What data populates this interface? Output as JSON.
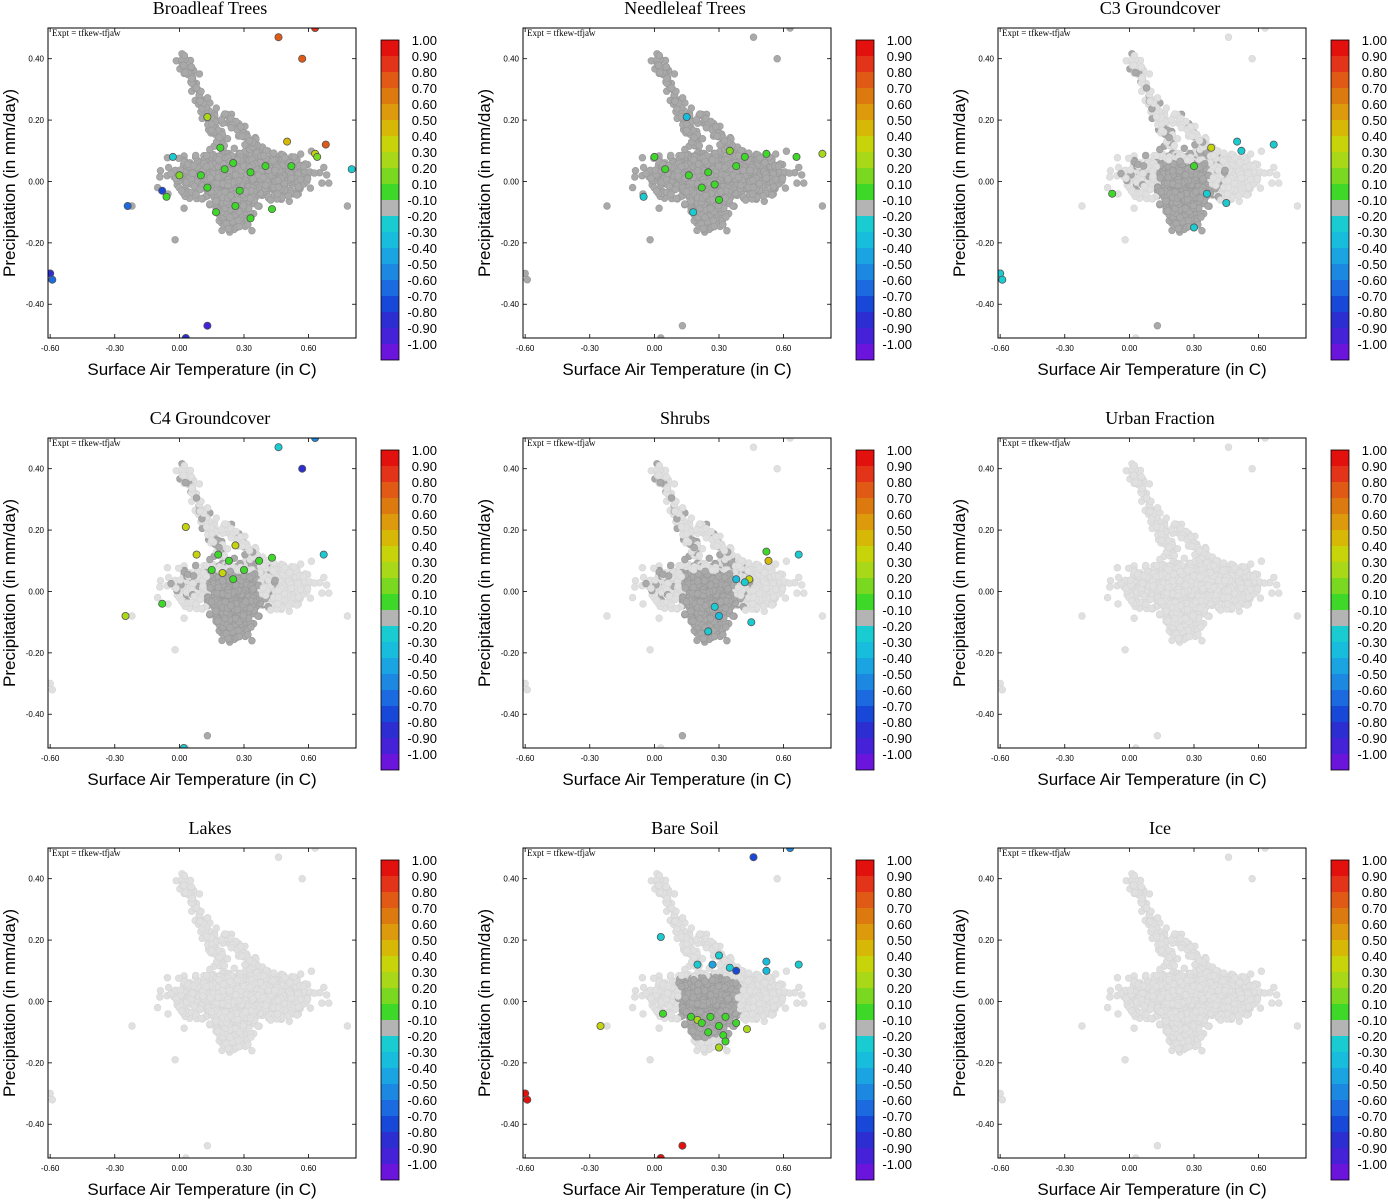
{
  "figure": {
    "expt_label": "Expt = tfkew-tfjaw",
    "xlabel": "Surface Air Temperature (in C)",
    "ylabel": "Precipitation (in mm/day)",
    "xticks": [
      "-0.60",
      "-0.30",
      "0.00",
      "0.30",
      "0.60"
    ],
    "yticks": [
      "0.40",
      "0.20",
      "0.00",
      "-0.20",
      "-0.40"
    ],
    "colorbar": {
      "labels": [
        "1.00",
        "0.90",
        "0.80",
        "0.70",
        "0.60",
        "0.50",
        "0.40",
        "0.30",
        "0.20",
        "0.10",
        "-0.10",
        "-0.20",
        "-0.30",
        "-0.40",
        "-0.50",
        "-0.60",
        "-0.70",
        "-0.80",
        "-0.90",
        "-1.00"
      ],
      "colors": [
        "#e3110e",
        "#e3341a",
        "#e05a16",
        "#dc7a10",
        "#dc9a0c",
        "#d7b806",
        "#c8d40a",
        "#a8d818",
        "#7ad820",
        "#3ed828",
        "#b4b4b4",
        "#18ccd2",
        "#18bcdc",
        "#1aa4e2",
        "#1c88e2",
        "#1c6ae0",
        "#1848d8",
        "#2d2ed2",
        "#4522d8",
        "#6a14dc"
      ]
    }
  },
  "chart_data": [
    {
      "type": "scatter",
      "title": "Broadleaf Trees",
      "xlim": [
        -0.61,
        0.82
      ],
      "ylim": [
        -0.51,
        0.5
      ],
      "background_style": "dark",
      "points": [
        {
          "x": 0.46,
          "y": 0.47,
          "color": "#e05a16"
        },
        {
          "x": 0.63,
          "y": 0.5,
          "color": "#e3341a"
        },
        {
          "x": 0.57,
          "y": 0.4,
          "color": "#e05a16"
        },
        {
          "x": 0.68,
          "y": 0.12,
          "color": "#e05a16"
        },
        {
          "x": 0.13,
          "y": 0.21,
          "color": "#a8d818"
        },
        {
          "x": 0.5,
          "y": 0.13,
          "color": "#d7b806"
        },
        {
          "x": 0.63,
          "y": 0.09,
          "color": "#c8d40a"
        },
        {
          "x": 0.64,
          "y": 0.08,
          "color": "#7ad820"
        },
        {
          "x": 0.19,
          "y": 0.11,
          "color": "#3ed828"
        },
        {
          "x": 0.0,
          "y": 0.02,
          "color": "#7ad820"
        },
        {
          "x": 0.1,
          "y": 0.02,
          "color": "#3ed828"
        },
        {
          "x": 0.21,
          "y": 0.04,
          "color": "#3ed828"
        },
        {
          "x": 0.25,
          "y": 0.06,
          "color": "#3ed828"
        },
        {
          "x": 0.33,
          "y": 0.03,
          "color": "#3ed828"
        },
        {
          "x": 0.4,
          "y": 0.05,
          "color": "#3ed828"
        },
        {
          "x": 0.52,
          "y": 0.05,
          "color": "#3ed828"
        },
        {
          "x": 0.13,
          "y": -0.02,
          "color": "#3ed828"
        },
        {
          "x": 0.28,
          "y": -0.03,
          "color": "#3ed828"
        },
        {
          "x": 0.17,
          "y": -0.1,
          "color": "#3ed828"
        },
        {
          "x": 0.26,
          "y": -0.08,
          "color": "#3ed828"
        },
        {
          "x": 0.33,
          "y": -0.12,
          "color": "#3ed828"
        },
        {
          "x": 0.43,
          "y": -0.09,
          "color": "#3ed828"
        },
        {
          "x": -0.06,
          "y": -0.05,
          "color": "#3ed828"
        },
        {
          "x": 0.8,
          "y": 0.04,
          "color": "#18ccd2"
        },
        {
          "x": -0.03,
          "y": 0.08,
          "color": "#18ccd2"
        },
        {
          "x": -0.08,
          "y": -0.03,
          "color": "#1848d8"
        },
        {
          "x": -0.24,
          "y": -0.08,
          "color": "#1c6ae0"
        },
        {
          "x": -0.6,
          "y": -0.3,
          "color": "#2d2ed2"
        },
        {
          "x": -0.59,
          "y": -0.32,
          "color": "#1c6ae0"
        },
        {
          "x": 0.13,
          "y": -0.47,
          "color": "#4522d8"
        },
        {
          "x": 0.03,
          "y": -0.51,
          "color": "#2d2ed2"
        }
      ]
    },
    {
      "type": "scatter",
      "title": "Needleleaf Trees",
      "xlim": [
        -0.61,
        0.82
      ],
      "ylim": [
        -0.51,
        0.5
      ],
      "background_style": "dark",
      "points": [
        {
          "x": 0.0,
          "y": 0.08,
          "color": "#3ed828"
        },
        {
          "x": 0.05,
          "y": 0.04,
          "color": "#3ed828"
        },
        {
          "x": 0.16,
          "y": 0.02,
          "color": "#3ed828"
        },
        {
          "x": 0.25,
          "y": 0.03,
          "color": "#3ed828"
        },
        {
          "x": 0.28,
          "y": -0.01,
          "color": "#3ed828"
        },
        {
          "x": 0.22,
          "y": -0.02,
          "color": "#3ed828"
        },
        {
          "x": 0.3,
          "y": -0.06,
          "color": "#3ed828"
        },
        {
          "x": 0.38,
          "y": 0.05,
          "color": "#3ed828"
        },
        {
          "x": 0.42,
          "y": 0.08,
          "color": "#3ed828"
        },
        {
          "x": 0.52,
          "y": 0.09,
          "color": "#3ed828"
        },
        {
          "x": 0.66,
          "y": 0.08,
          "color": "#3ed828"
        },
        {
          "x": 0.78,
          "y": 0.09,
          "color": "#a8d818"
        },
        {
          "x": 0.84,
          "y": 0.04,
          "color": "#3ed828"
        },
        {
          "x": 0.35,
          "y": 0.1,
          "color": "#7ad820"
        },
        {
          "x": 0.15,
          "y": 0.21,
          "color": "#18bcdc"
        },
        {
          "x": 0.18,
          "y": -0.1,
          "color": "#18ccd2"
        },
        {
          "x": -0.05,
          "y": -0.05,
          "color": "#18ccd2"
        }
      ]
    },
    {
      "type": "scatter",
      "title": "C3 Groundcover",
      "xlim": [
        -0.61,
        0.82
      ],
      "ylim": [
        -0.51,
        0.5
      ],
      "background_style": "light",
      "points": [
        {
          "x": 0.38,
          "y": 0.11,
          "color": "#c8d40a"
        },
        {
          "x": 0.3,
          "y": 0.05,
          "color": "#3ed828"
        },
        {
          "x": -0.08,
          "y": -0.04,
          "color": "#3ed828"
        },
        {
          "x": 0.5,
          "y": 0.13,
          "color": "#18ccd2"
        },
        {
          "x": 0.52,
          "y": 0.1,
          "color": "#18ccd2"
        },
        {
          "x": 0.67,
          "y": 0.12,
          "color": "#18ccd2"
        },
        {
          "x": 0.36,
          "y": -0.04,
          "color": "#18ccd2"
        },
        {
          "x": 0.45,
          "y": -0.07,
          "color": "#18ccd2"
        },
        {
          "x": 0.3,
          "y": -0.15,
          "color": "#18ccd2"
        },
        {
          "x": -0.6,
          "y": -0.3,
          "color": "#18ccd2"
        },
        {
          "x": -0.59,
          "y": -0.32,
          "color": "#18ccd2"
        }
      ]
    },
    {
      "type": "scatter",
      "title": "C4 Groundcover",
      "xlim": [
        -0.61,
        0.82
      ],
      "ylim": [
        -0.51,
        0.5
      ],
      "background_style": "light",
      "points": [
        {
          "x": 0.03,
          "y": 0.21,
          "color": "#c8d40a"
        },
        {
          "x": 0.08,
          "y": 0.12,
          "color": "#c8d40a"
        },
        {
          "x": 0.18,
          "y": 0.12,
          "color": "#3ed828"
        },
        {
          "x": 0.26,
          "y": 0.15,
          "color": "#c8d40a"
        },
        {
          "x": 0.2,
          "y": 0.06,
          "color": "#c8d40a"
        },
        {
          "x": 0.25,
          "y": 0.04,
          "color": "#3ed828"
        },
        {
          "x": 0.3,
          "y": 0.07,
          "color": "#3ed828"
        },
        {
          "x": 0.37,
          "y": 0.1,
          "color": "#3ed828"
        },
        {
          "x": 0.43,
          "y": 0.11,
          "color": "#3ed828"
        },
        {
          "x": 0.15,
          "y": 0.07,
          "color": "#3ed828"
        },
        {
          "x": 0.23,
          "y": 0.1,
          "color": "#3ed828"
        },
        {
          "x": -0.08,
          "y": -0.04,
          "color": "#3ed828"
        },
        {
          "x": -0.25,
          "y": -0.08,
          "color": "#a8d818"
        },
        {
          "x": 0.46,
          "y": 0.47,
          "color": "#18ccd2"
        },
        {
          "x": 0.67,
          "y": 0.12,
          "color": "#18ccd2"
        },
        {
          "x": 0.63,
          "y": 0.5,
          "color": "#1c88e2"
        },
        {
          "x": 0.57,
          "y": 0.4,
          "color": "#2d2ed2"
        },
        {
          "x": 0.02,
          "y": -0.51,
          "color": "#18ccd2"
        }
      ]
    },
    {
      "type": "scatter",
      "title": "Shrubs",
      "xlim": [
        -0.61,
        0.82
      ],
      "ylim": [
        -0.51,
        0.5
      ],
      "background_style": "light",
      "points": [
        {
          "x": 0.52,
          "y": 0.13,
          "color": "#3ed828"
        },
        {
          "x": 0.53,
          "y": 0.1,
          "color": "#d7b806"
        },
        {
          "x": 0.44,
          "y": 0.04,
          "color": "#c8d40a"
        },
        {
          "x": 0.67,
          "y": 0.12,
          "color": "#18ccd2"
        },
        {
          "x": 0.38,
          "y": 0.04,
          "color": "#18bcdc"
        },
        {
          "x": 0.42,
          "y": 0.03,
          "color": "#18ccd2"
        },
        {
          "x": 0.28,
          "y": -0.05,
          "color": "#18ccd2"
        },
        {
          "x": 0.3,
          "y": -0.08,
          "color": "#18bcdc"
        },
        {
          "x": 0.45,
          "y": -0.1,
          "color": "#18ccd2"
        },
        {
          "x": 0.25,
          "y": -0.13,
          "color": "#18ccd2"
        }
      ]
    },
    {
      "type": "scatter",
      "title": "Urban Fraction",
      "xlim": [
        -0.61,
        0.82
      ],
      "ylim": [
        -0.51,
        0.5
      ],
      "background_style": "none",
      "points": []
    },
    {
      "type": "scatter",
      "title": "Lakes",
      "xlim": [
        -0.61,
        0.82
      ],
      "ylim": [
        -0.51,
        0.5
      ],
      "background_style": "none",
      "points": []
    },
    {
      "type": "scatter",
      "title": "Bare Soil",
      "xlim": [
        -0.61,
        0.82
      ],
      "ylim": [
        -0.51,
        0.5
      ],
      "background_style": "medium",
      "points": [
        {
          "x": -0.25,
          "y": -0.08,
          "color": "#c8d40a"
        },
        {
          "x": 0.04,
          "y": -0.04,
          "color": "#3ed828"
        },
        {
          "x": 0.17,
          "y": -0.05,
          "color": "#3ed828"
        },
        {
          "x": 0.2,
          "y": -0.06,
          "color": "#a8d818"
        },
        {
          "x": 0.22,
          "y": -0.07,
          "color": "#3ed828"
        },
        {
          "x": 0.26,
          "y": -0.05,
          "color": "#3ed828"
        },
        {
          "x": 0.3,
          "y": -0.08,
          "color": "#3ed828"
        },
        {
          "x": 0.33,
          "y": -0.05,
          "color": "#3ed828"
        },
        {
          "x": 0.38,
          "y": -0.07,
          "color": "#3ed828"
        },
        {
          "x": 0.43,
          "y": -0.09,
          "color": "#a8d818"
        },
        {
          "x": 0.32,
          "y": -0.11,
          "color": "#3ed828"
        },
        {
          "x": 0.25,
          "y": -0.1,
          "color": "#3ed828"
        },
        {
          "x": 0.33,
          "y": -0.13,
          "color": "#3ed828"
        },
        {
          "x": 0.3,
          "y": -0.15,
          "color": "#a8d818"
        },
        {
          "x": 0.03,
          "y": 0.21,
          "color": "#18ccd2"
        },
        {
          "x": 0.3,
          "y": 0.15,
          "color": "#18ccd2"
        },
        {
          "x": 0.2,
          "y": 0.12,
          "color": "#18ccd2"
        },
        {
          "x": 0.35,
          "y": 0.11,
          "color": "#18ccd2"
        },
        {
          "x": 0.52,
          "y": 0.13,
          "color": "#18bcdc"
        },
        {
          "x": 0.52,
          "y": 0.1,
          "color": "#18bcdc"
        },
        {
          "x": 0.67,
          "y": 0.12,
          "color": "#18ccd2"
        },
        {
          "x": 0.27,
          "y": 0.12,
          "color": "#1aa4e2"
        },
        {
          "x": 0.38,
          "y": 0.1,
          "color": "#1848d8"
        },
        {
          "x": 0.46,
          "y": 0.47,
          "color": "#1848d8"
        },
        {
          "x": 0.63,
          "y": 0.5,
          "color": "#1c88e2"
        },
        {
          "x": -0.6,
          "y": -0.3,
          "color": "#e3110e"
        },
        {
          "x": -0.59,
          "y": -0.32,
          "color": "#e3110e"
        },
        {
          "x": 0.13,
          "y": -0.47,
          "color": "#e3110e"
        },
        {
          "x": 0.03,
          "y": -0.51,
          "color": "#e3110e"
        }
      ]
    },
    {
      "type": "scatter",
      "title": "Ice",
      "xlim": [
        -0.61,
        0.82
      ],
      "ylim": [
        -0.51,
        0.5
      ],
      "background_style": "none",
      "points": []
    }
  ]
}
